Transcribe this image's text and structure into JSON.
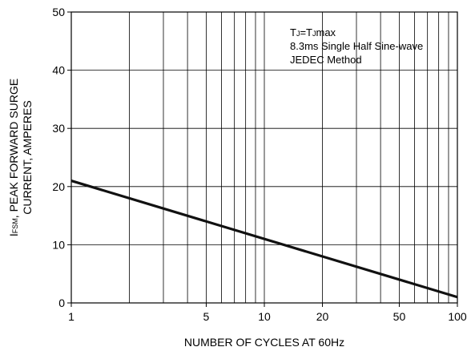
{
  "chart_data": {
    "type": "line",
    "xscale": "log",
    "xlim": [
      1,
      100
    ],
    "ylim": [
      0,
      50
    ],
    "grid": true,
    "x_ticks": [
      {
        "value": 1,
        "label": "1"
      },
      {
        "value": 5,
        "label": "5"
      },
      {
        "value": 10,
        "label": "10"
      },
      {
        "value": 20,
        "label": "20"
      },
      {
        "value": 50,
        "label": "50"
      },
      {
        "value": 100,
        "label": "100"
      }
    ],
    "y_ticks": [
      {
        "value": 0,
        "label": "0"
      },
      {
        "value": 10,
        "label": "10"
      },
      {
        "value": 20,
        "label": "20"
      },
      {
        "value": 30,
        "label": "30"
      },
      {
        "value": 40,
        "label": "40"
      },
      {
        "value": 50,
        "label": "50"
      }
    ],
    "xlabel": "NUMBER OF CYCLES AT 60Hz",
    "ylabel": {
      "line1_symbol_main": "I",
      "line1_symbol_sub": "FSM",
      "line1_rest": ", PEAK FORWARD SURGE",
      "line2": "CURRENT, AMPERES"
    },
    "annotation": {
      "line1_parts": [
        "T",
        "J",
        "=T",
        "J",
        "max"
      ],
      "line2": "8.3ms Single Half Sine-wave",
      "line3": "JEDEC Method",
      "position": "top-right"
    },
    "series": [
      {
        "x": [
          1,
          100
        ],
        "y": [
          21,
          1
        ],
        "color": "#111111"
      }
    ]
  }
}
